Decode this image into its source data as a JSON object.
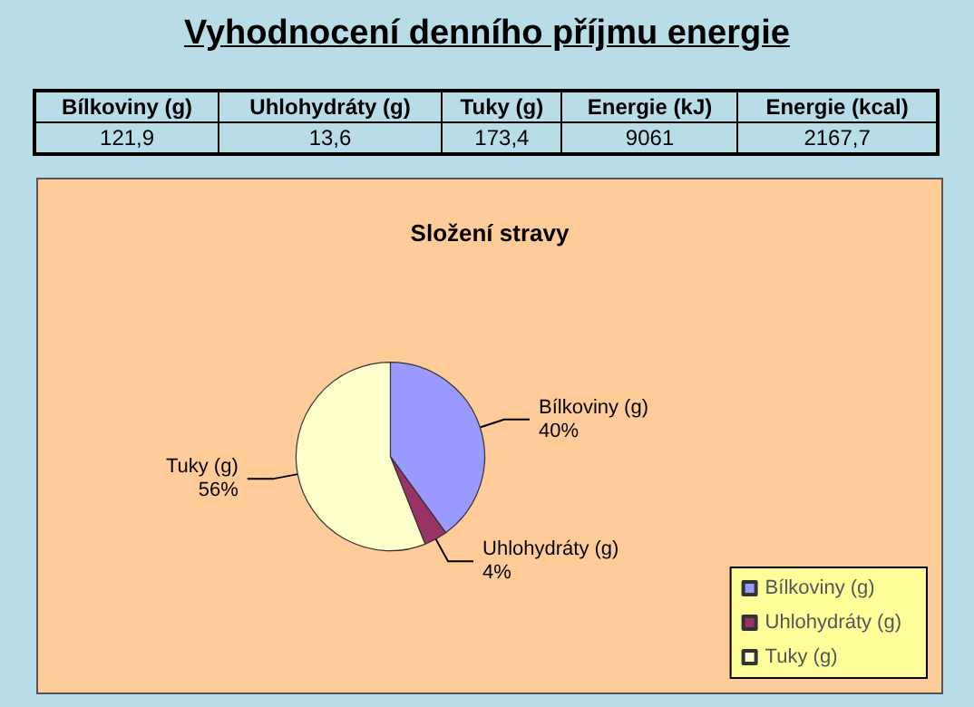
{
  "chart_data": {
    "type": "pie",
    "title": "Vyhodnocení denního příjmu energie",
    "subtitle": "Složení stravy",
    "categories": [
      "Bílkoviny (g)",
      "Uhlohydráty (g)",
      "Tuky (g)"
    ],
    "values": [
      40,
      4,
      56
    ],
    "value_labels": [
      "40%",
      "4%",
      "56%"
    ],
    "colors": [
      "#9999ff",
      "#993366",
      "#ffffcc"
    ],
    "legend": "bottom right",
    "annotations": [
      "Bílkoviny (g)",
      "Uhlohydráty (g)",
      "Tuky (g)",
      "Energie (kJ)",
      "Energie (kcal)",
      "121,9",
      "13,6",
      "173,4",
      "9061",
      "2167,7"
    ]
  }
}
